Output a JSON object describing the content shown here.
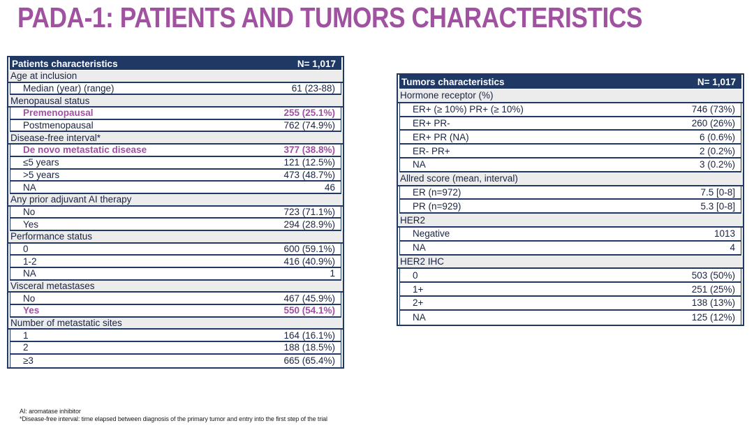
{
  "title": "PADA-1: PATIENTS AND TUMORS CHARACTERISTICS",
  "colors": {
    "accent_purple": "#A0519F",
    "table_navy": "#1F3864",
    "category_row_bg": "#ECECEC"
  },
  "patients_table": {
    "header": {
      "label": "Patients characteristics",
      "n": "N= 1,017"
    },
    "rows": [
      {
        "type": "cat",
        "label": "Age at inclusion",
        "value": ""
      },
      {
        "type": "data",
        "label": "Median (year) (range)",
        "value": "61 (23-88)"
      },
      {
        "type": "cat",
        "label": "Menopausal status",
        "value": ""
      },
      {
        "type": "data",
        "label": "Premenopausal",
        "value": "255 (25.1%)",
        "hl": true
      },
      {
        "type": "data",
        "label": "Postmenopausal",
        "value": "762 (74.9%)"
      },
      {
        "type": "cat",
        "label": "Disease-free interval*",
        "value": ""
      },
      {
        "type": "data",
        "label": "De novo metastatic disease",
        "value": "377 (38.8%)",
        "hl": true
      },
      {
        "type": "data",
        "label": "≤5 years",
        "value": "121 (12.5%)"
      },
      {
        "type": "data",
        "label": ">5 years",
        "value": "473 (48.7%)"
      },
      {
        "type": "data",
        "label": "NA",
        "value": "46"
      },
      {
        "type": "cat",
        "label": "Any prior adjuvant AI therapy",
        "value": ""
      },
      {
        "type": "data",
        "label": "No",
        "value": "723 (71.1%)"
      },
      {
        "type": "data",
        "label": "Yes",
        "value": "294 (28.9%)"
      },
      {
        "type": "cat",
        "label": "Performance status",
        "value": ""
      },
      {
        "type": "data",
        "label": "0",
        "value": "600 (59.1%)"
      },
      {
        "type": "data",
        "label": "1-2",
        "value": "416 (40.9%)"
      },
      {
        "type": "data",
        "label": "NA",
        "value": "1"
      },
      {
        "type": "cat",
        "label": "Visceral metastases",
        "value": ""
      },
      {
        "type": "data",
        "label": "No",
        "value": "467 (45.9%)"
      },
      {
        "type": "data",
        "label": "Yes",
        "value": "550 (54.1%)",
        "hl": true
      },
      {
        "type": "cat",
        "label": "Number of metastatic sites",
        "value": ""
      },
      {
        "type": "data",
        "label": "1",
        "value": "164 (16.1%)"
      },
      {
        "type": "data",
        "label": "2",
        "value": "188 (18.5%)"
      },
      {
        "type": "data",
        "label": "≥3",
        "value": "665 (65.4%)"
      }
    ]
  },
  "tumors_table": {
    "header": {
      "label": "Tumors characteristics",
      "n": "N= 1,017"
    },
    "rows": [
      {
        "type": "cat",
        "label": "Hormone receptor (%)",
        "value": ""
      },
      {
        "type": "data",
        "label": "ER+ (≥ 10%) PR+ (≥ 10%)",
        "value": "746 (73%)"
      },
      {
        "type": "data",
        "label": "ER+ PR-",
        "value": "260 (26%)"
      },
      {
        "type": "data",
        "label": "ER+ PR (NA)",
        "value": "6 (0.6%)"
      },
      {
        "type": "data",
        "label": "ER- PR+",
        "value": "2 (0.2%)"
      },
      {
        "type": "data",
        "label": "NA",
        "value": "3 (0.2%)"
      },
      {
        "type": "cat",
        "label": "Allred score (mean, interval)",
        "value": ""
      },
      {
        "type": "data",
        "label": "ER (n=972)",
        "value": "7.5 [0-8]"
      },
      {
        "type": "data",
        "label": "PR (n=929)",
        "value": "5.3 [0-8]"
      },
      {
        "type": "cat",
        "label": "HER2",
        "value": ""
      },
      {
        "type": "data",
        "label": "Negative",
        "value": "1013"
      },
      {
        "type": "data",
        "label": "NA",
        "value": "4"
      },
      {
        "type": "cat",
        "label": "HER2 IHC",
        "value": ""
      },
      {
        "type": "data",
        "label": "0",
        "value": "503 (50%)"
      },
      {
        "type": "data",
        "label": "1+",
        "value": "251 (25%)"
      },
      {
        "type": "data",
        "label": "2+",
        "value": "138 (13%)"
      },
      {
        "type": "data",
        "label": "NA",
        "value": "125 (12%)"
      }
    ]
  },
  "footnotes": [
    {
      "text": "AI: aromatase inhibitor"
    },
    {
      "text": "*Disease-free interval: time elapsed between diagnosis of the primary tumor and entry into the first step of the trial"
    }
  ]
}
